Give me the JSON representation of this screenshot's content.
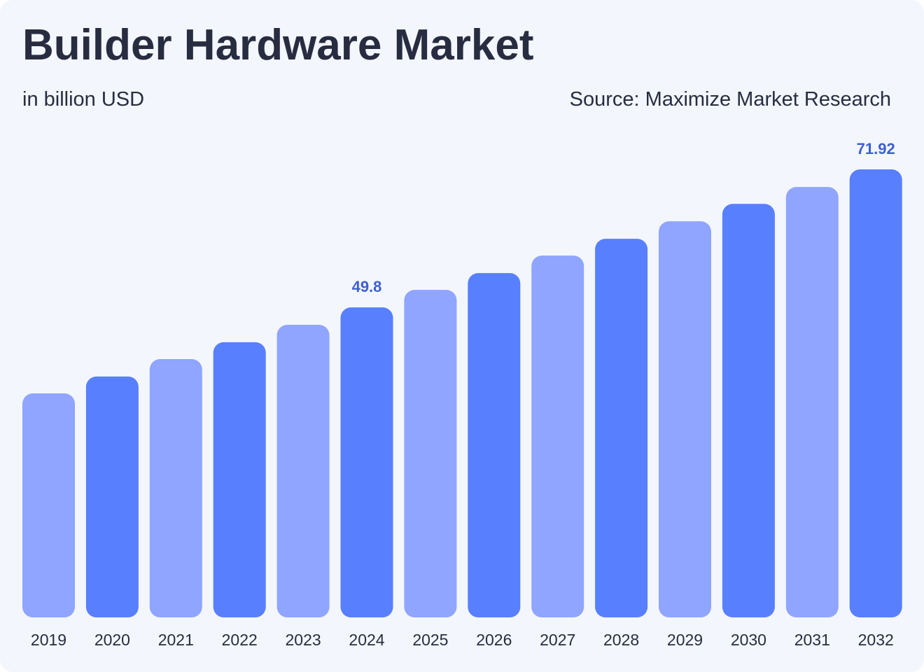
{
  "header": {
    "title": "Builder Hardware Market",
    "subtitle": "in billion USD",
    "source": "Source: Maximize Market Research"
  },
  "colors": {
    "background": "#f3f6fd",
    "text": "#282c40",
    "bar_light": "#8fa5ff",
    "bar_dark": "#587ffe",
    "value_label": "#3d5fd0"
  },
  "chart_data": {
    "type": "bar",
    "title": "Builder Hardware Market",
    "subtitle": "in billion USD",
    "xlabel": "",
    "ylabel": "",
    "ylim": [
      0,
      75
    ],
    "grid": false,
    "categories": [
      "2019",
      "2020",
      "2021",
      "2022",
      "2023",
      "2024",
      "2025",
      "2026",
      "2027",
      "2028",
      "2029",
      "2030",
      "2031",
      "2032"
    ],
    "values": [
      36.0,
      38.7,
      41.5,
      44.2,
      47.0,
      49.8,
      52.6,
      55.3,
      58.1,
      60.8,
      63.6,
      66.4,
      69.1,
      71.92
    ],
    "data_labels": [
      {
        "index": 5,
        "text": "49.8"
      },
      {
        "index": 13,
        "text": "71.92"
      }
    ],
    "bar_color_pattern": [
      "light",
      "dark"
    ]
  }
}
